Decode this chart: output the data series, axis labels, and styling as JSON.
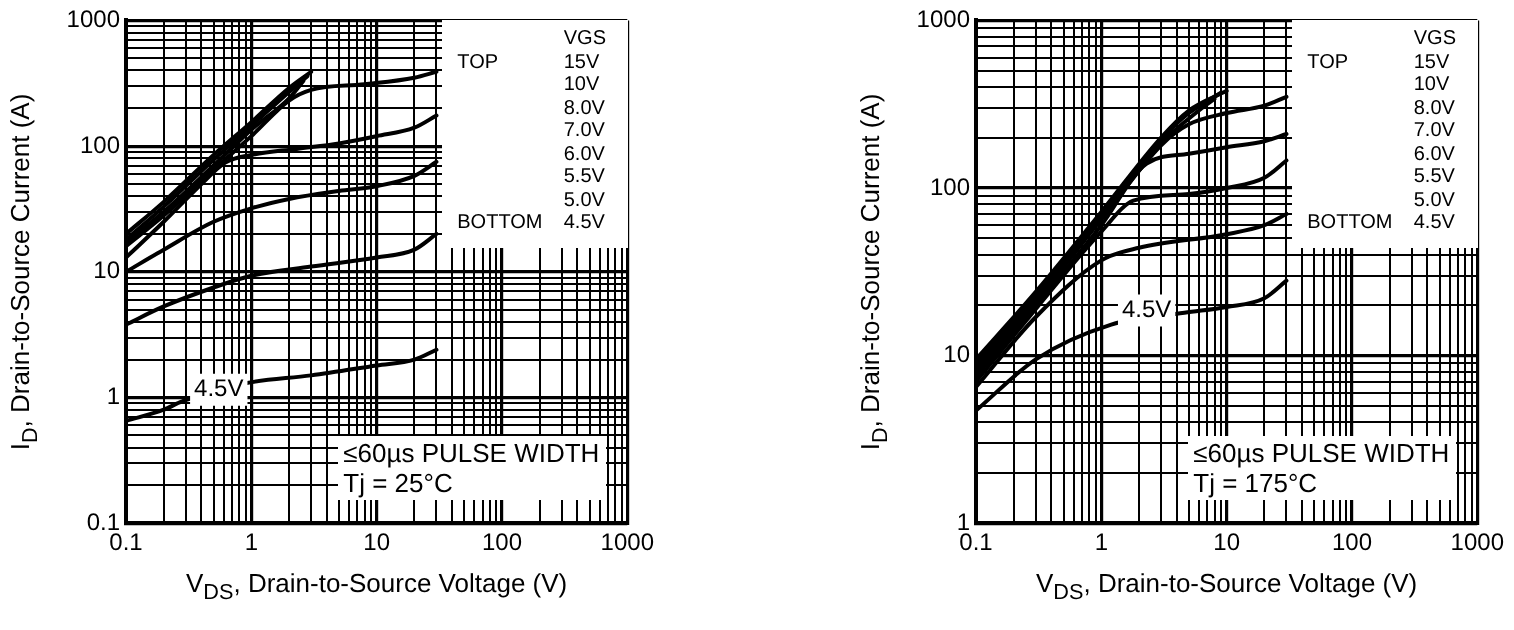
{
  "chart_data": [
    {
      "type": "line",
      "xlabel": "V$_{DS}$, Drain-to-Source Voltage (V)",
      "ylabel": "I$_{D}$, Drain-to-Source Current (A)",
      "log": "xy",
      "grid": true,
      "marker": "none",
      "line_style": "solid",
      "xlim": [
        0.1,
        1000
      ],
      "ylim": [
        0.1,
        1000
      ],
      "xticks": [
        0.1,
        {
          "value": 0.2,
          "label": null
        },
        {
          "value": 0.3,
          "label": null
        },
        {
          "value": 0.4,
          "label": null
        },
        {
          "value": 0.5,
          "label": null
        },
        {
          "value": 0.6,
          "label": null
        },
        {
          "value": 0.7,
          "label": null
        },
        {
          "value": 0.8,
          "label": null
        },
        {
          "value": 0.9,
          "label": null
        },
        1,
        {
          "value": 2,
          "label": null
        },
        {
          "value": 3,
          "label": null
        },
        {
          "value": 4,
          "label": null
        },
        {
          "value": 5,
          "label": null
        },
        {
          "value": 6,
          "label": null
        },
        {
          "value": 7,
          "label": null
        },
        {
          "value": 8,
          "label": null
        },
        {
          "value": 9,
          "label": null
        },
        10,
        {
          "value": 20,
          "label": null
        },
        {
          "value": 30,
          "label": null
        },
        {
          "value": 40,
          "label": null
        },
        {
          "value": 50,
          "label": null
        },
        {
          "value": 60,
          "label": null
        },
        {
          "value": 70,
          "label": null
        },
        {
          "value": 80,
          "label": null
        },
        {
          "value": 90,
          "label": null
        },
        100,
        {
          "value": 200,
          "label": null
        },
        {
          "value": 300,
          "label": null
        },
        {
          "value": 400,
          "label": null
        },
        {
          "value": 500,
          "label": null
        },
        {
          "value": 600,
          "label": null
        },
        {
          "value": 700,
          "label": null
        },
        {
          "value": 800,
          "label": null
        },
        {
          "value": 900,
          "label": null
        },
        1000
      ],
      "yticks": [
        0.1,
        {
          "value": 0.2,
          "label": null
        },
        {
          "value": 0.3,
          "label": null
        },
        {
          "value": 0.4,
          "label": null
        },
        {
          "value": 0.5,
          "label": null
        },
        {
          "value": 0.6,
          "label": null
        },
        {
          "value": 0.7,
          "label": null
        },
        {
          "value": 0.8,
          "label": null
        },
        {
          "value": 0.9,
          "label": null
        },
        1,
        {
          "value": 2,
          "label": null
        },
        {
          "value": 3,
          "label": null
        },
        {
          "value": 4,
          "label": null
        },
        {
          "value": 5,
          "label": null
        },
        {
          "value": 6,
          "label": null
        },
        {
          "value": 7,
          "label": null
        },
        {
          "value": 8,
          "label": null
        },
        {
          "value": 9,
          "label": null
        },
        10,
        {
          "value": 20,
          "label": null
        },
        {
          "value": 30,
          "label": null
        },
        {
          "value": 40,
          "label": null
        },
        {
          "value": 50,
          "label": null
        },
        {
          "value": 60,
          "label": null
        },
        {
          "value": 70,
          "label": null
        },
        {
          "value": 80,
          "label": null
        },
        {
          "value": 90,
          "label": null
        },
        100,
        {
          "value": 200,
          "label": null
        },
        {
          "value": 300,
          "label": null
        },
        {
          "value": 400,
          "label": null
        },
        {
          "value": 500,
          "label": null
        },
        {
          "value": 600,
          "label": null
        },
        {
          "value": 700,
          "label": null
        },
        {
          "value": 800,
          "label": null
        },
        {
          "value": 900,
          "label": null
        },
        1000
      ],
      "series": [
        {
          "color": "#000000",
          "x": [
            0.1,
            0.2,
            0.5,
            1,
            2,
            3
          ],
          "values": [
            20,
            36,
            85,
            155,
            290,
            390
          ]
        },
        {
          "color": "#000000",
          "x": [
            0.1,
            0.2,
            0.5,
            1,
            2,
            2.8
          ],
          "values": [
            18,
            33,
            78,
            145,
            270,
            360
          ]
        },
        {
          "color": "#000000",
          "x": [
            0.1,
            0.2,
            0.5,
            1,
            2,
            2.6
          ],
          "values": [
            17,
            30,
            70,
            135,
            240,
            330
          ]
        },
        {
          "color": "#000000",
          "x": [
            0.1,
            0.2,
            0.5,
            1,
            2,
            3,
            8,
            20,
            30
          ],
          "values": [
            16,
            28,
            65,
            120,
            230,
            280,
            310,
            350,
            390
          ]
        },
        {
          "color": "#000000",
          "x": [
            0.1,
            0.2,
            0.4,
            0.62,
            1,
            2.3,
            5,
            10,
            20,
            30
          ],
          "values": [
            13,
            25,
            50,
            74,
            85,
            95,
            105,
            120,
            140,
            175
          ]
        },
        {
          "color": "#000000",
          "x": [
            0.1,
            0.2,
            0.5,
            1,
            2,
            5,
            10,
            20,
            30
          ],
          "values": [
            10,
            15,
            25,
            32,
            38,
            44,
            48,
            58,
            75
          ]
        },
        {
          "color": "#000000",
          "x": [
            0.1,
            0.2,
            0.5,
            1,
            3,
            10,
            20,
            30
          ],
          "values": [
            3.8,
            5.3,
            7.5,
            9.3,
            11,
            13,
            15,
            20
          ]
        },
        {
          "color": "#000000",
          "x": [
            0.1,
            0.2,
            0.28,
            0.9,
            3,
            10,
            20,
            30
          ],
          "values": [
            0.65,
            0.8,
            0.93,
            1.3,
            1.5,
            1.8,
            2,
            2.4
          ]
        }
      ],
      "annotations": [
        "VGS",
        "TOP",
        "15V",
        "10V",
        "8.0V",
        "7.0V",
        "6.0V",
        "5.5V",
        "5.0V",
        "BOTTOM",
        "4.5V",
        "≤60µs PULSE WIDTH",
        "Tj = 25°C",
        {
          "text": "4.5V",
          "x": 0.55,
          "y": 1.15
        }
      ]
    },
    {
      "type": "line",
      "xlabel": "V$_{DS}$, Drain-to-Source Voltage (V)",
      "ylabel": "I$_{D}$, Drain-to-Source Current (A)",
      "log": "xy",
      "grid": true,
      "marker": "none",
      "line_style": "solid",
      "xlim": [
        0.1,
        1000
      ],
      "ylim": [
        1,
        1000
      ],
      "xticks": [
        0.1,
        {
          "value": 0.2,
          "label": null
        },
        {
          "value": 0.3,
          "label": null
        },
        {
          "value": 0.4,
          "label": null
        },
        {
          "value": 0.5,
          "label": null
        },
        {
          "value": 0.6,
          "label": null
        },
        {
          "value": 0.7,
          "label": null
        },
        {
          "value": 0.8,
          "label": null
        },
        {
          "value": 0.9,
          "label": null
        },
        1,
        {
          "value": 2,
          "label": null
        },
        {
          "value": 3,
          "label": null
        },
        {
          "value": 4,
          "label": null
        },
        {
          "value": 5,
          "label": null
        },
        {
          "value": 6,
          "label": null
        },
        {
          "value": 7,
          "label": null
        },
        {
          "value": 8,
          "label": null
        },
        {
          "value": 9,
          "label": null
        },
        10,
        {
          "value": 20,
          "label": null
        },
        {
          "value": 30,
          "label": null
        },
        {
          "value": 40,
          "label": null
        },
        {
          "value": 50,
          "label": null
        },
        {
          "value": 60,
          "label": null
        },
        {
          "value": 70,
          "label": null
        },
        {
          "value": 80,
          "label": null
        },
        {
          "value": 90,
          "label": null
        },
        100,
        {
          "value": 200,
          "label": null
        },
        {
          "value": 300,
          "label": null
        },
        {
          "value": 400,
          "label": null
        },
        {
          "value": 500,
          "label": null
        },
        {
          "value": 600,
          "label": null
        },
        {
          "value": 700,
          "label": null
        },
        {
          "value": 800,
          "label": null
        },
        {
          "value": 900,
          "label": null
        },
        1000
      ],
      "yticks": [
        1,
        {
          "value": 2,
          "label": null
        },
        {
          "value": 3,
          "label": null
        },
        {
          "value": 4,
          "label": null
        },
        {
          "value": 5,
          "label": null
        },
        {
          "value": 6,
          "label": null
        },
        {
          "value": 7,
          "label": null
        },
        {
          "value": 8,
          "label": null
        },
        {
          "value": 9,
          "label": null
        },
        10,
        {
          "value": 20,
          "label": null
        },
        {
          "value": 30,
          "label": null
        },
        {
          "value": 40,
          "label": null
        },
        {
          "value": 50,
          "label": null
        },
        {
          "value": 60,
          "label": null
        },
        {
          "value": 70,
          "label": null
        },
        {
          "value": 80,
          "label": null
        },
        {
          "value": 90,
          "label": null
        },
        100,
        {
          "value": 200,
          "label": null
        },
        {
          "value": 300,
          "label": null
        },
        {
          "value": 400,
          "label": null
        },
        {
          "value": 500,
          "label": null
        },
        {
          "value": 600,
          "label": null
        },
        {
          "value": 700,
          "label": null
        },
        {
          "value": 800,
          "label": null
        },
        {
          "value": 900,
          "label": null
        },
        1000
      ],
      "series": [
        {
          "color": "#000000",
          "x": [
            0.1,
            0.3,
            1,
            3,
            5,
            10
          ],
          "values": [
            9.5,
            24,
            72,
            200,
            290,
            380
          ]
        },
        {
          "color": "#000000",
          "x": [
            0.1,
            0.3,
            1,
            3,
            5,
            9
          ],
          "values": [
            9,
            23,
            70,
            195,
            280,
            370
          ]
        },
        {
          "color": "#000000",
          "x": [
            0.1,
            0.3,
            1,
            3,
            6,
            8
          ],
          "values": [
            8.5,
            22,
            67,
            185,
            290,
            340
          ]
        },
        {
          "color": "#000000",
          "x": [
            0.1,
            0.3,
            1,
            3,
            5,
            10,
            20,
            30
          ],
          "values": [
            8,
            21,
            65,
            180,
            240,
            280,
            310,
            350
          ]
        },
        {
          "color": "#000000",
          "x": [
            0.1,
            0.3,
            1,
            2.3,
            5,
            10,
            20,
            30
          ],
          "values": [
            7.5,
            20,
            60,
            140,
            160,
            175,
            190,
            210
          ]
        },
        {
          "color": "#000000",
          "x": [
            0.1,
            0.3,
            1,
            1.8,
            5,
            10,
            20,
            30
          ],
          "values": [
            7,
            19,
            55,
            84,
            92,
            100,
            115,
            146
          ]
        },
        {
          "color": "#000000",
          "x": [
            0.1,
            0.3,
            1,
            2,
            10,
            20,
            30
          ],
          "values": [
            6.5,
            17,
            37,
            44,
            53,
            60,
            70
          ]
        },
        {
          "color": "#000000",
          "x": [
            0.1,
            0.3,
            1.2,
            4.6,
            10,
            20,
            30
          ],
          "values": [
            4.7,
            9.5,
            15.3,
            18,
            19.5,
            22,
            28
          ]
        }
      ],
      "annotations": [
        "VGS",
        "TOP",
        "15V",
        "10V",
        "8.0V",
        "7.0V",
        "6.0V",
        "5.5V",
        "5.0V",
        "BOTTOM",
        "4.5V",
        "≤60µs PULSE WIDTH",
        "Tj = 175°C",
        {
          "text": "4.5V",
          "x": 2.3,
          "y": 18.6
        }
      ]
    }
  ]
}
